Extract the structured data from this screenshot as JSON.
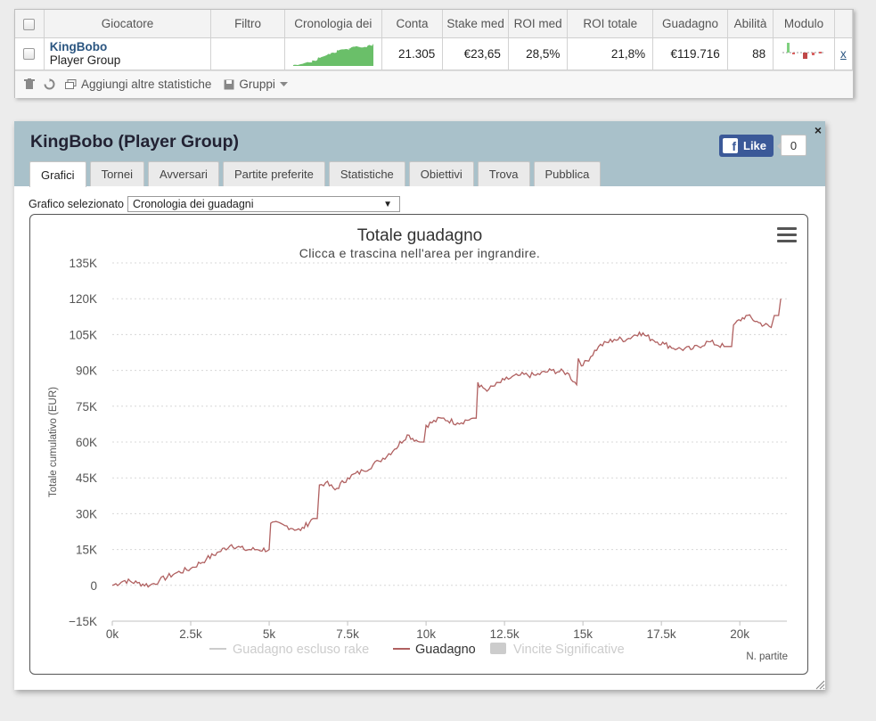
{
  "grid": {
    "columns": [
      "",
      "Giocatore",
      "Filtro",
      "Cronologia dei",
      "Conta",
      "Stake med",
      "ROI med",
      "ROI totale",
      "Guadagno",
      "Abilità",
      "Modulo",
      ""
    ],
    "row": {
      "player_name": "KingBobo",
      "player_sub": "Player Group",
      "filter": "",
      "count": "21.305",
      "stake_avg": "€23,65",
      "roi_avg": "28,5%",
      "roi_total": "21,8%",
      "profit": "€119.716",
      "ability": "88",
      "remove": "x"
    },
    "toolbar": {
      "add_stats": "Aggiungi altre statistiche",
      "groups": "Gruppi"
    }
  },
  "panel": {
    "title": "KingBobo (Player Group)",
    "like_label": "Like",
    "like_count": "0",
    "close": "×",
    "tabs": [
      "Grafici",
      "Tornei",
      "Avversari",
      "Partite preferite",
      "Statistiche",
      "Obiettivi",
      "Trova",
      "Pubblica"
    ],
    "active_tab": 0,
    "select_label": "Grafico selezionato",
    "select_value": "Cronologia dei guadagni"
  },
  "colors": {
    "header_bg": "#a9c1ca",
    "line": "#b06060",
    "fb_blue": "#3b5998",
    "sparkline_green": "#6abf69",
    "link": "#2a5580"
  },
  "chart_data": {
    "type": "line",
    "title": "Totale guadagno",
    "subtitle": "Clicca e trascina nell'area per ingrandire.",
    "xlabel": "N. partite",
    "ylabel": "Totale cumulativo (EUR)",
    "xlim": [
      0,
      21305
    ],
    "ylim": [
      -15000,
      135000
    ],
    "x_ticks": [
      "0k",
      "2.5k",
      "5k",
      "7.5k",
      "10k",
      "12.5k",
      "15k",
      "17.5k",
      "20k"
    ],
    "y_ticks": [
      "135K",
      "120K",
      "105K",
      "90K",
      "75K",
      "60K",
      "45K",
      "30K",
      "15K",
      "0",
      "−15K"
    ],
    "grid": true,
    "legend_position": "bottom",
    "legend": [
      {
        "name": "Guadagno escluso rake",
        "active": false
      },
      {
        "name": "Guadagno",
        "active": true
      },
      {
        "name": "Vincite Significative",
        "active": false
      }
    ],
    "series": [
      {
        "name": "Guadagno",
        "x": [
          0,
          400,
          800,
          1200,
          1500,
          2000,
          2500,
          3000,
          3400,
          3800,
          4200,
          4600,
          5000,
          5050,
          5500,
          6000,
          6400,
          6600,
          6800,
          7100,
          7500,
          8000,
          8500,
          9000,
          9400,
          9800,
          10000,
          10500,
          11000,
          11500,
          11650,
          11700,
          12000,
          12500,
          13000,
          13500,
          14000,
          14500,
          14800,
          14850,
          15000,
          15500,
          16000,
          16400,
          16800,
          17200,
          17600,
          18000,
          18500,
          19000,
          19500,
          19800,
          20200,
          20600,
          21000,
          21100,
          21305
        ],
        "values": [
          0,
          2000,
          1000,
          0,
          2000,
          5000,
          7000,
          11000,
          14000,
          17000,
          15000,
          15000,
          15000,
          26000,
          25000,
          23000,
          28000,
          42000,
          43000,
          40000,
          45000,
          48000,
          52000,
          57000,
          63000,
          60000,
          67000,
          70000,
          68000,
          70000,
          85000,
          83000,
          82000,
          86000,
          88000,
          88000,
          90000,
          89000,
          84000,
          95000,
          92000,
          100000,
          103000,
          103000,
          106000,
          103000,
          101000,
          99000,
          99000,
          102000,
          100000,
          109000,
          113000,
          110000,
          108000,
          113000,
          120000
        ]
      }
    ]
  }
}
